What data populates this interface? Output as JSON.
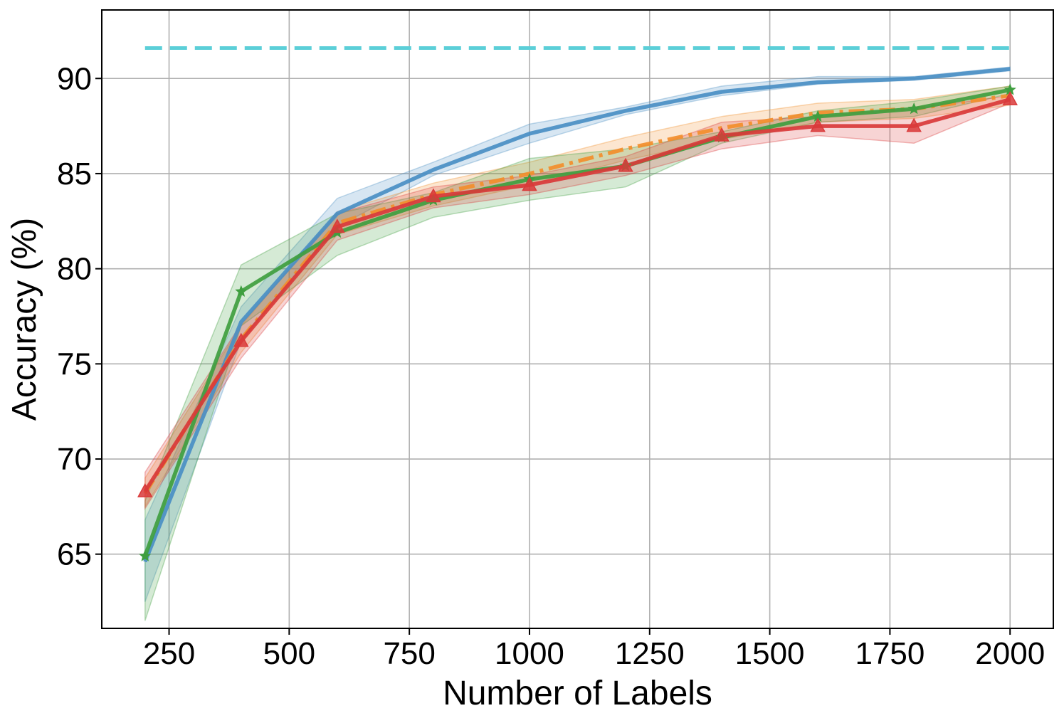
{
  "chart_data": {
    "type": "line",
    "title": "",
    "xlabel": "Number of Labels",
    "ylabel": "Accuracy (%)",
    "xlim": [
      110,
      2090
    ],
    "ylim": [
      61.1,
      93.6
    ],
    "xticks": [
      250,
      500,
      750,
      1000,
      1250,
      1500,
      1750,
      2000
    ],
    "yticks": [
      65,
      70,
      75,
      80,
      85,
      90
    ],
    "grid": true,
    "legend": "none",
    "x": [
      200,
      400,
      600,
      800,
      1000,
      1200,
      1400,
      1600,
      1800,
      2000
    ],
    "reference_line": {
      "y": 91.6,
      "x_range": [
        200,
        2000
      ],
      "style": "dashed",
      "color": "#5bcfd8"
    },
    "series": [
      {
        "color": "#4a8fc4",
        "style": "solid",
        "marker": "none",
        "values": [
          64.6,
          77.2,
          82.9,
          85.2,
          87.1,
          88.3,
          89.3,
          89.8,
          90.0,
          90.5
        ],
        "lower": [
          62.5,
          76.2,
          82.2,
          84.9,
          86.6,
          88.1,
          89.1,
          89.7,
          89.9,
          90.4
        ],
        "upper": [
          66.8,
          78.0,
          83.7,
          85.6,
          87.6,
          88.5,
          89.6,
          90.1,
          90.1,
          90.6
        ]
      },
      {
        "color": "#f28e2b",
        "style": "dashdot",
        "marker": "none",
        "values": [
          68.2,
          76.3,
          82.4,
          83.9,
          85.0,
          86.3,
          87.4,
          88.2,
          88.4,
          89.1
        ],
        "lower": [
          67.5,
          75.6,
          81.8,
          83.3,
          84.4,
          85.7,
          86.8,
          87.7,
          87.9,
          88.6
        ],
        "upper": [
          69.0,
          77.0,
          83.0,
          84.5,
          85.6,
          86.9,
          88.0,
          88.7,
          88.9,
          89.6
        ]
      },
      {
        "color": "#3f9e3f",
        "style": "solid",
        "marker": "star",
        "values": [
          64.9,
          78.8,
          81.9,
          83.6,
          84.7,
          85.4,
          86.9,
          88.0,
          88.4,
          89.4
        ],
        "lower": [
          61.5,
          77.0,
          80.7,
          82.7,
          83.6,
          84.3,
          86.6,
          87.7,
          88.0,
          89.2
        ],
        "upper": [
          67.8,
          80.2,
          82.9,
          84.0,
          85.8,
          86.3,
          87.2,
          88.3,
          88.8,
          89.6
        ]
      },
      {
        "color": "#d93a3a",
        "style": "solid",
        "marker": "triangle",
        "values": [
          68.3,
          76.2,
          82.2,
          83.8,
          84.4,
          85.4,
          87.0,
          87.5,
          87.5,
          88.9
        ],
        "lower": [
          67.4,
          75.3,
          81.5,
          83.2,
          83.9,
          84.9,
          86.3,
          87.0,
          86.6,
          88.7
        ],
        "upper": [
          69.3,
          77.1,
          82.9,
          84.3,
          84.9,
          85.9,
          87.7,
          88.0,
          88.4,
          89.1
        ]
      }
    ]
  }
}
